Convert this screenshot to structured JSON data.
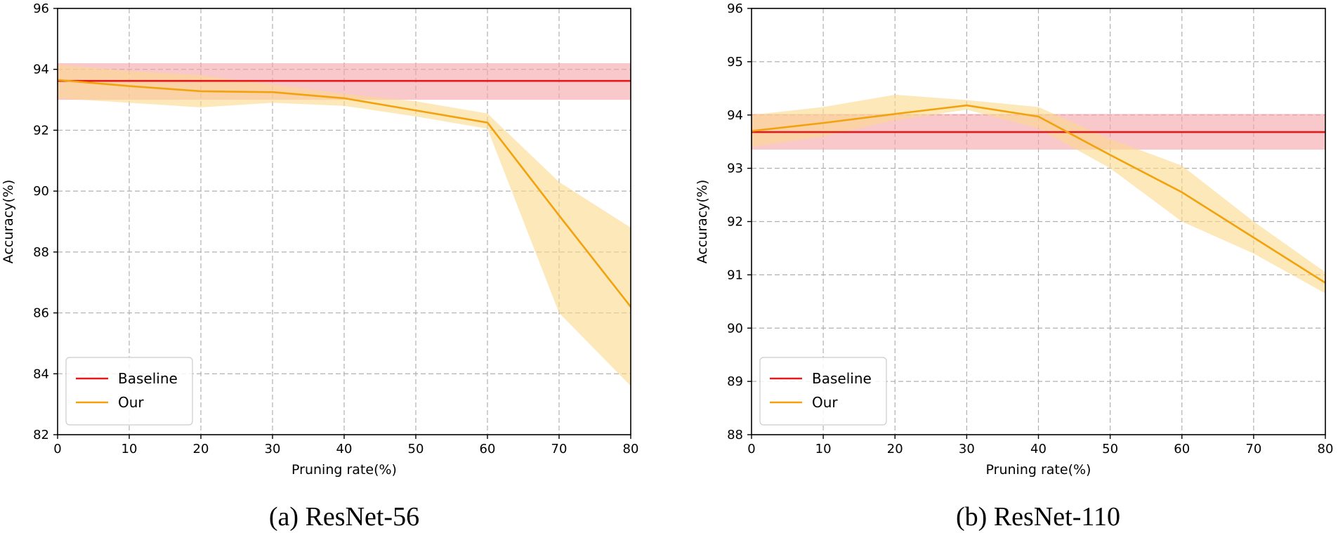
{
  "chart_data": [
    {
      "type": "line",
      "caption": "(a) ResNet-56",
      "xlabel": "Pruning rate(%)",
      "ylabel": "Accuracy(%)",
      "xlim": [
        0,
        80
      ],
      "ylim": [
        82,
        96
      ],
      "xticks": [
        0,
        10,
        20,
        30,
        40,
        50,
        60,
        70,
        80
      ],
      "yticks": [
        82,
        84,
        86,
        88,
        90,
        92,
        94,
        96
      ],
      "grid": true,
      "legend_position": "lower-left",
      "series": [
        {
          "name": "Baseline",
          "color": "#e31a1c",
          "band_color": "#f4a3a6",
          "x": [
            0,
            80
          ],
          "y": [
            93.62,
            93.62
          ],
          "lower": [
            93.0,
            93.0
          ],
          "upper": [
            94.2,
            94.2
          ]
        },
        {
          "name": "Our",
          "color": "#f2a20c",
          "band_color": "#fbd98c",
          "x": [
            0,
            10,
            20,
            30,
            40,
            50,
            60,
            70,
            80
          ],
          "y": [
            93.65,
            93.45,
            93.28,
            93.25,
            93.05,
            92.65,
            92.25,
            89.2,
            86.2
          ],
          "lower": [
            93.05,
            92.9,
            92.75,
            92.9,
            92.8,
            92.45,
            92.05,
            86.0,
            83.6
          ],
          "upper": [
            94.15,
            93.95,
            93.8,
            93.5,
            93.2,
            92.95,
            92.55,
            90.3,
            88.8
          ]
        }
      ]
    },
    {
      "type": "line",
      "caption": "(b) ResNet-110",
      "xlabel": "Pruning rate(%)",
      "ylabel": "Accuracy(%)",
      "xlim": [
        0,
        80
      ],
      "ylim": [
        88,
        96
      ],
      "xticks": [
        0,
        10,
        20,
        30,
        40,
        50,
        60,
        70,
        80
      ],
      "yticks": [
        88,
        89,
        90,
        91,
        92,
        93,
        94,
        95,
        96
      ],
      "grid": true,
      "legend_position": "lower-left",
      "series": [
        {
          "name": "Baseline",
          "color": "#e31a1c",
          "band_color": "#f4a3a6",
          "x": [
            0,
            80
          ],
          "y": [
            93.68,
            93.68
          ],
          "lower": [
            93.35,
            93.35
          ],
          "upper": [
            94.02,
            94.02
          ]
        },
        {
          "name": "Our",
          "color": "#f2a20c",
          "band_color": "#fbd98c",
          "x": [
            0,
            10,
            20,
            30,
            40,
            50,
            60,
            70,
            80
          ],
          "y": [
            93.7,
            93.85,
            94.02,
            94.18,
            93.97,
            93.25,
            92.55,
            91.7,
            90.85
          ],
          "lower": [
            93.4,
            93.6,
            93.9,
            94.1,
            93.75,
            93.0,
            92.0,
            91.4,
            90.65
          ],
          "upper": [
            94.0,
            94.15,
            94.38,
            94.28,
            94.15,
            93.55,
            93.05,
            92.0,
            91.05
          ]
        }
      ]
    }
  ]
}
